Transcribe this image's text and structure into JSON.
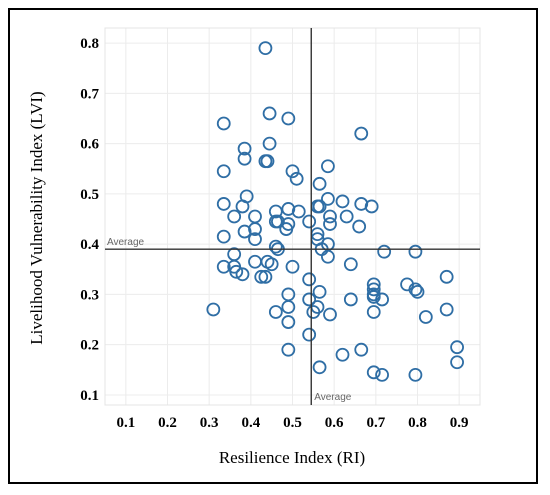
{
  "chart_data": {
    "type": "scatter",
    "xlabel": "Resilience Index (RI)",
    "ylabel": "Livelihood Vulnerability Index (LVI)",
    "xlim": [
      0.05,
      0.95
    ],
    "ylim": [
      0.08,
      0.83
    ],
    "xticks": [
      "0.1",
      "0.2",
      "0.3",
      "0.4",
      "0.5",
      "0.6",
      "0.7",
      "0.8",
      "0.9"
    ],
    "yticks": [
      "0.8",
      "0.7",
      "0.6",
      "0.5",
      "0.4",
      "0.3",
      "0.2",
      "0.1"
    ],
    "grid": true,
    "averages": {
      "x": 0.545,
      "y": 0.39,
      "x_label": "Average",
      "y_label": "Average"
    },
    "points": [
      [
        0.435,
        0.79
      ],
      [
        0.335,
        0.64
      ],
      [
        0.445,
        0.66
      ],
      [
        0.49,
        0.65
      ],
      [
        0.665,
        0.62
      ],
      [
        0.445,
        0.6
      ],
      [
        0.385,
        0.59
      ],
      [
        0.385,
        0.57
      ],
      [
        0.435,
        0.565
      ],
      [
        0.44,
        0.565
      ],
      [
        0.335,
        0.545
      ],
      [
        0.5,
        0.545
      ],
      [
        0.585,
        0.555
      ],
      [
        0.51,
        0.53
      ],
      [
        0.565,
        0.52
      ],
      [
        0.39,
        0.495
      ],
      [
        0.585,
        0.49
      ],
      [
        0.62,
        0.485
      ],
      [
        0.335,
        0.48
      ],
      [
        0.38,
        0.475
      ],
      [
        0.565,
        0.475
      ],
      [
        0.56,
        0.475
      ],
      [
        0.665,
        0.48
      ],
      [
        0.69,
        0.475
      ],
      [
        0.49,
        0.47
      ],
      [
        0.46,
        0.465
      ],
      [
        0.515,
        0.465
      ],
      [
        0.41,
        0.455
      ],
      [
        0.36,
        0.455
      ],
      [
        0.59,
        0.455
      ],
      [
        0.63,
        0.455
      ],
      [
        0.46,
        0.445
      ],
      [
        0.465,
        0.445
      ],
      [
        0.49,
        0.44
      ],
      [
        0.485,
        0.43
      ],
      [
        0.54,
        0.445
      ],
      [
        0.59,
        0.44
      ],
      [
        0.41,
        0.43
      ],
      [
        0.385,
        0.425
      ],
      [
        0.335,
        0.415
      ],
      [
        0.56,
        0.42
      ],
      [
        0.56,
        0.41
      ],
      [
        0.66,
        0.435
      ],
      [
        0.41,
        0.41
      ],
      [
        0.585,
        0.4
      ],
      [
        0.46,
        0.395
      ],
      [
        0.465,
        0.39
      ],
      [
        0.57,
        0.39
      ],
      [
        0.72,
        0.385
      ],
      [
        0.795,
        0.385
      ],
      [
        0.36,
        0.38
      ],
      [
        0.585,
        0.375
      ],
      [
        0.44,
        0.365
      ],
      [
        0.45,
        0.36
      ],
      [
        0.41,
        0.365
      ],
      [
        0.335,
        0.355
      ],
      [
        0.36,
        0.355
      ],
      [
        0.5,
        0.355
      ],
      [
        0.64,
        0.36
      ],
      [
        0.365,
        0.345
      ],
      [
        0.38,
        0.34
      ],
      [
        0.425,
        0.335
      ],
      [
        0.435,
        0.335
      ],
      [
        0.54,
        0.33
      ],
      [
        0.87,
        0.335
      ],
      [
        0.695,
        0.32
      ],
      [
        0.695,
        0.31
      ],
      [
        0.775,
        0.32
      ],
      [
        0.795,
        0.31
      ],
      [
        0.8,
        0.305
      ],
      [
        0.695,
        0.3
      ],
      [
        0.49,
        0.3
      ],
      [
        0.565,
        0.305
      ],
      [
        0.695,
        0.295
      ],
      [
        0.64,
        0.29
      ],
      [
        0.715,
        0.29
      ],
      [
        0.54,
        0.29
      ],
      [
        0.49,
        0.275
      ],
      [
        0.56,
        0.275
      ],
      [
        0.31,
        0.27
      ],
      [
        0.46,
        0.265
      ],
      [
        0.55,
        0.265
      ],
      [
        0.59,
        0.26
      ],
      [
        0.695,
        0.265
      ],
      [
        0.87,
        0.27
      ],
      [
        0.82,
        0.255
      ],
      [
        0.49,
        0.245
      ],
      [
        0.54,
        0.22
      ],
      [
        0.49,
        0.19
      ],
      [
        0.62,
        0.18
      ],
      [
        0.665,
        0.19
      ],
      [
        0.895,
        0.195
      ],
      [
        0.895,
        0.165
      ],
      [
        0.565,
        0.155
      ],
      [
        0.695,
        0.145
      ],
      [
        0.715,
        0.14
      ],
      [
        0.795,
        0.14
      ]
    ]
  }
}
